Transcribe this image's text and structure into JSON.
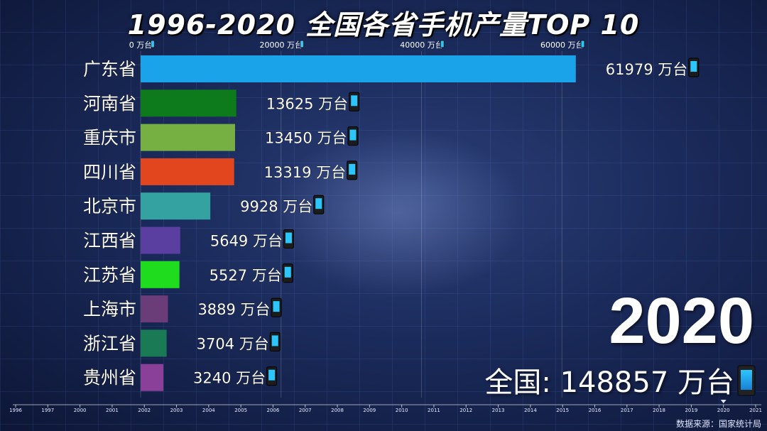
{
  "title": "1996-2020 全国各省手机产量TOP 10",
  "year": "2020",
  "total_label": "全国: 148857 万台",
  "source": "数据来源：国家统计局",
  "unit": "万台",
  "chart_data": {
    "type": "bar",
    "orientation": "horizontal",
    "title": "1996-2020 全国各省手机产量TOP 10",
    "categories": [
      "广东省",
      "河南省",
      "重庆市",
      "四川省",
      "北京市",
      "江西省",
      "江苏省",
      "上海市",
      "浙江省",
      "贵州省"
    ],
    "values": [
      61979,
      13625,
      13450,
      13319,
      9928,
      5649,
      5527,
      3889,
      3704,
      3240
    ],
    "colors": [
      "#1aa3e8",
      "#0d7a1c",
      "#76b043",
      "#e1461e",
      "#35a2a2",
      "#5a3fa0",
      "#1fdc1f",
      "#6b3d78",
      "#1a7a55",
      "#8a4098"
    ],
    "value_suffix": " 万台",
    "xlim": [
      0,
      70000
    ],
    "xticks": [
      0,
      20000,
      40000,
      60000
    ],
    "xtick_labels": [
      "0 万台",
      "20000 万台",
      "40000 万台",
      "60000 万台"
    ],
    "timeline": {
      "years": [
        "1996",
        "1997",
        "2000",
        "2001",
        "2002",
        "2003",
        "2004",
        "2005",
        "2006",
        "2007",
        "2008",
        "2009",
        "2010",
        "2011",
        "2012",
        "2013",
        "2014",
        "2015",
        "2016",
        "2017",
        "2018",
        "2019",
        "2020",
        "2021"
      ],
      "current": "2020"
    }
  }
}
